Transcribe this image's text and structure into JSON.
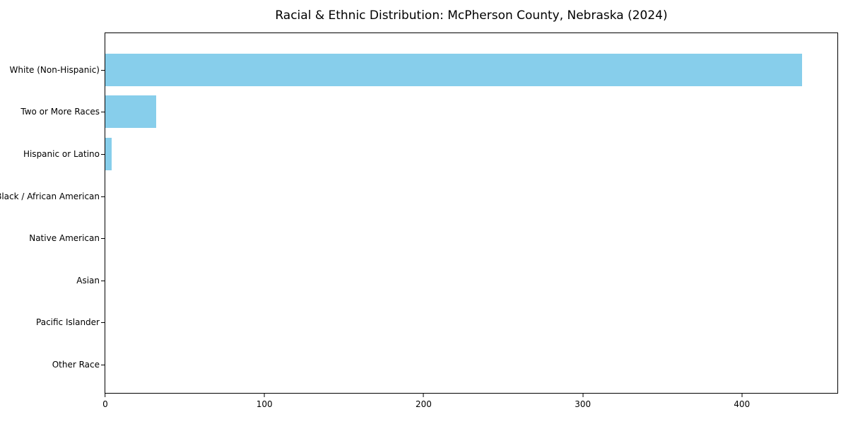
{
  "figure": {
    "background": "#ffffff"
  },
  "chart_data": {
    "type": "bar",
    "orientation": "horizontal",
    "title": "Racial & Ethnic Distribution: McPherson County, Nebraska (2024)",
    "categories": [
      "White (Non-Hispanic)",
      "Two or More Races",
      "Hispanic or Latino",
      "Black / African American",
      "Native American",
      "Asian",
      "Pacific Islander",
      "Other Race"
    ],
    "values": [
      438,
      32,
      4,
      0,
      0,
      0,
      0,
      0
    ],
    "xlabel": "",
    "ylabel": "",
    "xlim": [
      0,
      460
    ],
    "xticks": [
      0,
      100,
      200,
      300,
      400
    ],
    "grid": false,
    "legend": false,
    "bar_color": "#87CEEB",
    "axis_color": "#000000",
    "text_color": "#000000"
  }
}
